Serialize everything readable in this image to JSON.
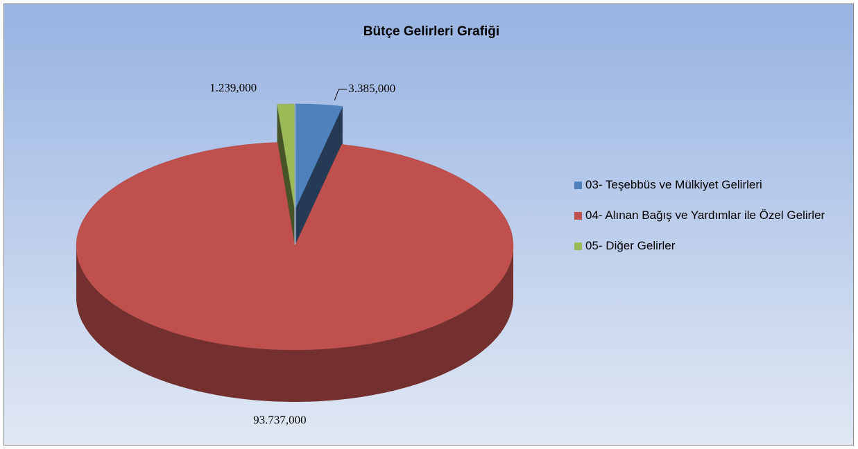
{
  "chart_data": {
    "type": "pie",
    "title": "Bütçe Gelirleri Grafiği",
    "categories": [
      "03- Teşebbüs ve Mülkiyet Gelirleri",
      "04- Alınan Bağış ve Yardımlar ile Özel Gelirler",
      "05- Diğer Gelirler"
    ],
    "values": [
      3385000,
      93737000,
      1239000
    ],
    "value_labels": [
      "3.385,000",
      "93.737,000",
      "1.239,000"
    ],
    "colors": [
      "#4f81bd",
      "#c0504d",
      "#9bbb59"
    ],
    "legend": "right"
  }
}
